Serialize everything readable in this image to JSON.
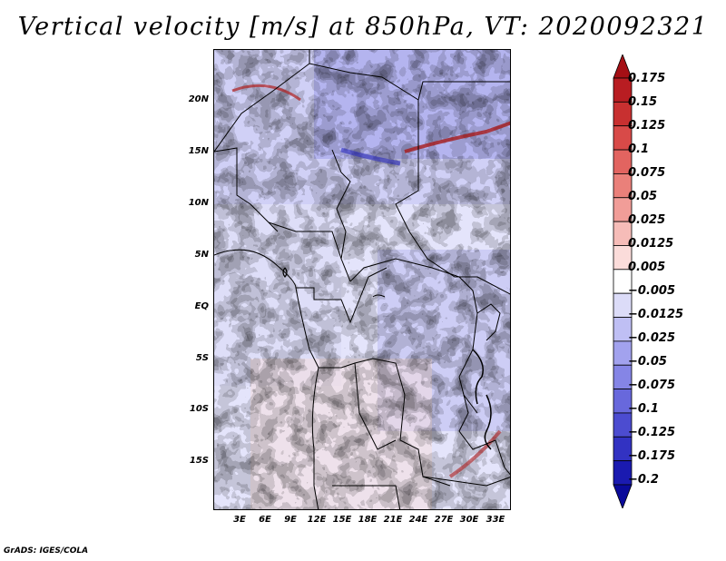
{
  "title": "Vertical velocity [m/s] at 850hPa, VT: 2020092321",
  "footer": "GrADS: IGES/COLA",
  "lat_labels": [
    "20N",
    "15N",
    "10N",
    "5N",
    "EQ",
    "5S",
    "10S",
    "15S"
  ],
  "lon_labels": [
    "3E",
    "6E",
    "9E",
    "12E",
    "15E",
    "18E",
    "21E",
    "24E",
    "27E",
    "30E",
    "33E"
  ],
  "colorbar": {
    "labels": [
      "0.175",
      "0.15",
      "0.125",
      "0.1",
      "0.075",
      "0.05",
      "0.025",
      "0.0125",
      "0.005",
      "−0.005",
      "−0.0125",
      "−0.025",
      "−0.05",
      "−0.075",
      "−0.1",
      "−0.125",
      "−0.175",
      "−0.2"
    ],
    "colors": [
      "#a50f15",
      "#b81d22",
      "#c83030",
      "#d84a48",
      "#e26460",
      "#ea807a",
      "#f19d98",
      "#f6bcb8",
      "#fbdcda",
      "#ffffff",
      "#dcdcf8",
      "#bfbff4",
      "#a2a2ee",
      "#8585e6",
      "#6868dc",
      "#4c4cd0",
      "#3232c2",
      "#1a1ab0",
      "#0a0a9a"
    ]
  }
}
